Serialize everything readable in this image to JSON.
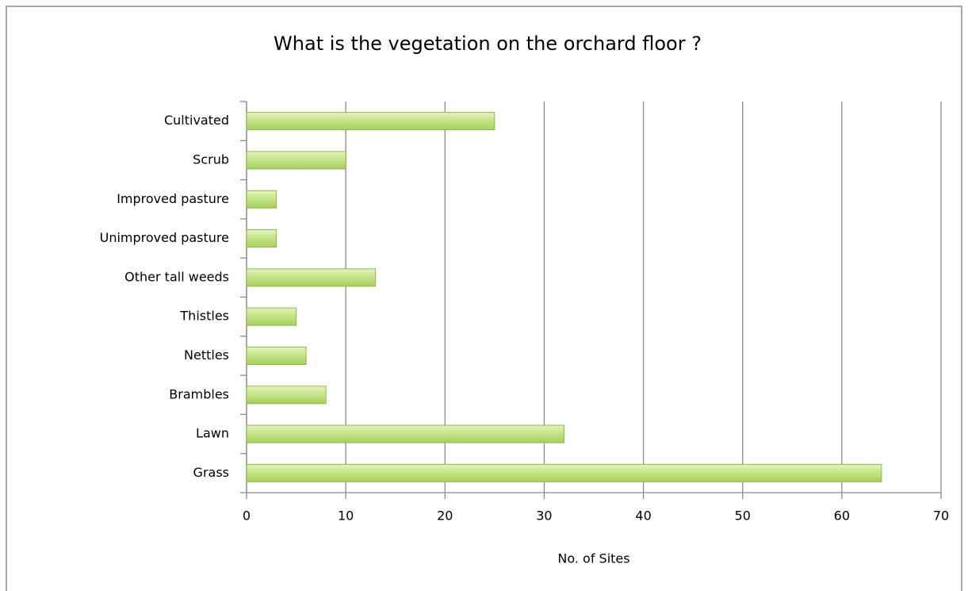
{
  "chart_data": {
    "type": "barh",
    "title": "What is the vegetation on the orchard floor ?",
    "categories": [
      "Cultivated",
      "Scrub",
      "Improved pasture",
      "Unimproved pasture",
      "Other tall weeds",
      "Thistles",
      "Nettles",
      "Brambles",
      "Lawn",
      "Grass"
    ],
    "values": [
      25,
      10,
      3,
      3,
      13,
      5,
      6,
      8,
      32,
      64
    ],
    "color": "#b8de74",
    "xlabel": "No. of Sites",
    "xlim": [
      0,
      70
    ],
    "xticks": [
      0,
      10,
      20,
      30,
      40,
      50,
      60,
      70
    ],
    "grid": true
  }
}
